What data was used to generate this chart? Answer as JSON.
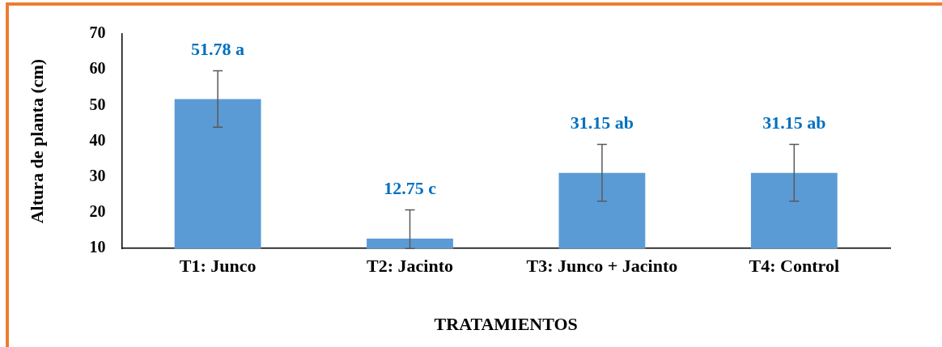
{
  "chart_data": {
    "type": "bar",
    "ylabel": "Altura de planta (cm)",
    "xlabel": "TRATAMIENTOS",
    "categories": [
      "T1: Junco",
      "T2: Jacinto",
      "T3: Junco + Jacinto",
      "T4: Control"
    ],
    "values": [
      51.78,
      12.75,
      31.15,
      31.15
    ],
    "color": "#5b9bd5",
    "errors": [
      [
        43.9,
        59.7
      ],
      [
        10,
        20.8
      ],
      [
        23.2,
        39.1
      ],
      [
        23.2,
        39.1
      ]
    ],
    "value_labels": [
      "51.78 a",
      "12.75 c",
      "31.15 ab",
      "31.15 ab"
    ],
    "ylim": [
      10,
      70
    ],
    "yticks": [
      10,
      20,
      30,
      40,
      50,
      60,
      70
    ],
    "grid": false,
    "legend": false
  }
}
